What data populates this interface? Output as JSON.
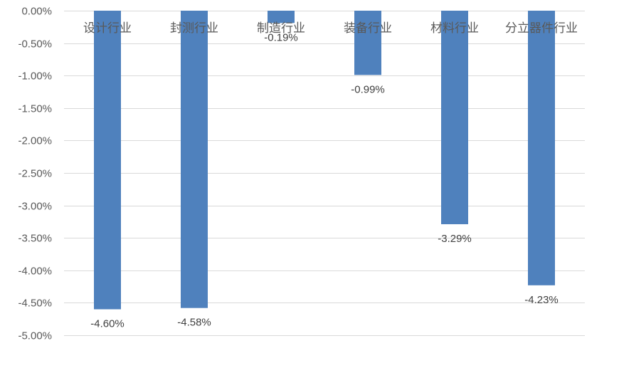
{
  "chart_data": {
    "type": "bar",
    "categories": [
      "设计行业",
      "封测行业",
      "制造行业",
      "装备行业",
      "材料行业",
      "分立器件行业"
    ],
    "values": [
      -4.6,
      -4.58,
      -0.19,
      -0.99,
      -3.29,
      -4.23
    ],
    "data_labels": [
      "-4.60%",
      "-4.58%",
      "-0.19%",
      "-0.99%",
      "-3.29%",
      "-4.23%"
    ],
    "ylim": [
      -5.0,
      0.0
    ],
    "yticks": [
      0.0,
      -0.5,
      -1.0,
      -1.5,
      -2.0,
      -2.5,
      -3.0,
      -3.5,
      -4.0,
      -4.5,
      -5.0
    ],
    "ytick_labels": [
      "0.00%",
      "-0.50%",
      "-1.00%",
      "-1.50%",
      "-2.00%",
      "-2.50%",
      "-3.00%",
      "-3.50%",
      "-4.00%",
      "-4.50%",
      "-5.00%"
    ],
    "title": "",
    "xlabel": "",
    "ylabel": "",
    "grid": true,
    "legend": "none",
    "colors": {
      "bar": "#4f81bd",
      "grid": "#d9d9d9",
      "tick_text": "#595959",
      "label_text": "#404040"
    }
  }
}
